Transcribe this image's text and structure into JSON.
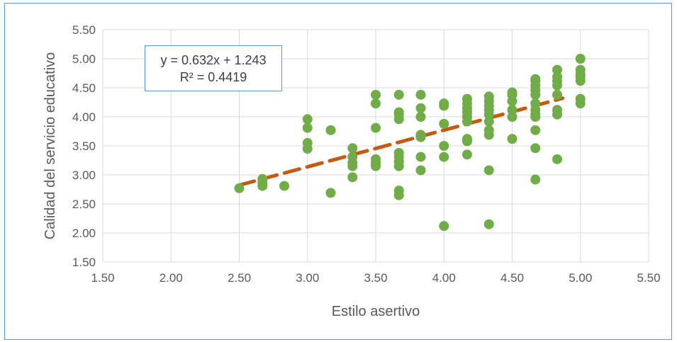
{
  "chart_data": {
    "type": "scatter",
    "xlabel": "Estilo asertivo",
    "ylabel": "Calidad del servicio educativo",
    "xlim": [
      1.5,
      5.5
    ],
    "ylim": [
      1.5,
      5.5
    ],
    "x_ticks": [
      "1.50",
      "2.00",
      "2.50",
      "3.00",
      "3.50",
      "4.00",
      "4.50",
      "5.00",
      "5.50"
    ],
    "y_ticks": [
      "1.50",
      "2.00",
      "2.50",
      "3.00",
      "3.50",
      "4.00",
      "4.50",
      "5.00",
      "5.50"
    ],
    "grid": true,
    "marker_color": "#70ad47",
    "trendline": {
      "slope": 0.632,
      "intercept": 1.243,
      "x_range": [
        2.5,
        4.87
      ],
      "color": "#c55a11",
      "style": "dashed"
    },
    "equation_text": "y = 0.632x + 1.243",
    "r2_text": "R² = 0.4419",
    "points": [
      [
        2.5,
        2.77
      ],
      [
        2.67,
        2.81
      ],
      [
        2.67,
        2.87
      ],
      [
        2.67,
        2.93
      ],
      [
        2.83,
        2.81
      ],
      [
        3.0,
        3.45
      ],
      [
        3.0,
        3.55
      ],
      [
        3.0,
        3.81
      ],
      [
        3.0,
        3.96
      ],
      [
        3.17,
        2.69
      ],
      [
        3.17,
        3.77
      ],
      [
        3.33,
        2.96
      ],
      [
        3.33,
        3.15
      ],
      [
        3.33,
        3.21
      ],
      [
        3.33,
        3.31
      ],
      [
        3.33,
        3.46
      ],
      [
        3.5,
        3.15
      ],
      [
        3.5,
        3.21
      ],
      [
        3.5,
        3.27
      ],
      [
        3.5,
        3.81
      ],
      [
        3.5,
        4.23
      ],
      [
        3.5,
        4.38
      ],
      [
        3.67,
        2.65
      ],
      [
        3.67,
        2.73
      ],
      [
        3.67,
        3.15
      ],
      [
        3.67,
        3.23
      ],
      [
        3.67,
        3.31
      ],
      [
        3.67,
        3.38
      ],
      [
        3.67,
        3.96
      ],
      [
        3.67,
        4.04
      ],
      [
        3.67,
        4.08
      ],
      [
        3.67,
        4.38
      ],
      [
        3.83,
        3.08
      ],
      [
        3.83,
        3.31
      ],
      [
        3.83,
        3.65
      ],
      [
        3.83,
        3.69
      ],
      [
        3.83,
        4.0
      ],
      [
        3.83,
        4.15
      ],
      [
        3.83,
        4.38
      ],
      [
        4.0,
        2.12
      ],
      [
        4.0,
        3.31
      ],
      [
        4.0,
        3.5
      ],
      [
        4.0,
        3.88
      ],
      [
        4.0,
        4.19
      ],
      [
        4.0,
        4.23
      ],
      [
        4.17,
        3.35
      ],
      [
        4.17,
        3.58
      ],
      [
        4.17,
        3.62
      ],
      [
        4.17,
        3.92
      ],
      [
        4.17,
        4.0
      ],
      [
        4.17,
        4.08
      ],
      [
        4.17,
        4.15
      ],
      [
        4.17,
        4.23
      ],
      [
        4.17,
        4.31
      ],
      [
        4.33,
        2.15
      ],
      [
        4.33,
        3.08
      ],
      [
        4.33,
        3.69
      ],
      [
        4.33,
        3.77
      ],
      [
        4.33,
        3.92
      ],
      [
        4.33,
        4.04
      ],
      [
        4.33,
        4.12
      ],
      [
        4.33,
        4.19
      ],
      [
        4.33,
        4.27
      ],
      [
        4.33,
        4.35
      ],
      [
        4.5,
        3.62
      ],
      [
        4.5,
        4.0
      ],
      [
        4.5,
        4.12
      ],
      [
        4.5,
        4.27
      ],
      [
        4.5,
        4.38
      ],
      [
        4.5,
        4.42
      ],
      [
        4.67,
        2.92
      ],
      [
        4.67,
        3.46
      ],
      [
        4.67,
        3.77
      ],
      [
        4.67,
        4.0
      ],
      [
        4.67,
        4.04
      ],
      [
        4.67,
        4.12
      ],
      [
        4.67,
        4.23
      ],
      [
        4.67,
        4.38
      ],
      [
        4.67,
        4.46
      ],
      [
        4.67,
        4.54
      ],
      [
        4.67,
        4.62
      ],
      [
        4.67,
        4.65
      ],
      [
        4.83,
        3.27
      ],
      [
        4.83,
        4.04
      ],
      [
        4.83,
        4.12
      ],
      [
        4.83,
        4.38
      ],
      [
        4.83,
        4.54
      ],
      [
        4.83,
        4.62
      ],
      [
        4.83,
        4.69
      ],
      [
        4.83,
        4.81
      ],
      [
        5.0,
        4.23
      ],
      [
        5.0,
        4.31
      ],
      [
        5.0,
        4.62
      ],
      [
        5.0,
        4.69
      ],
      [
        5.0,
        4.73
      ],
      [
        5.0,
        4.81
      ],
      [
        5.0,
        5.0
      ]
    ]
  }
}
